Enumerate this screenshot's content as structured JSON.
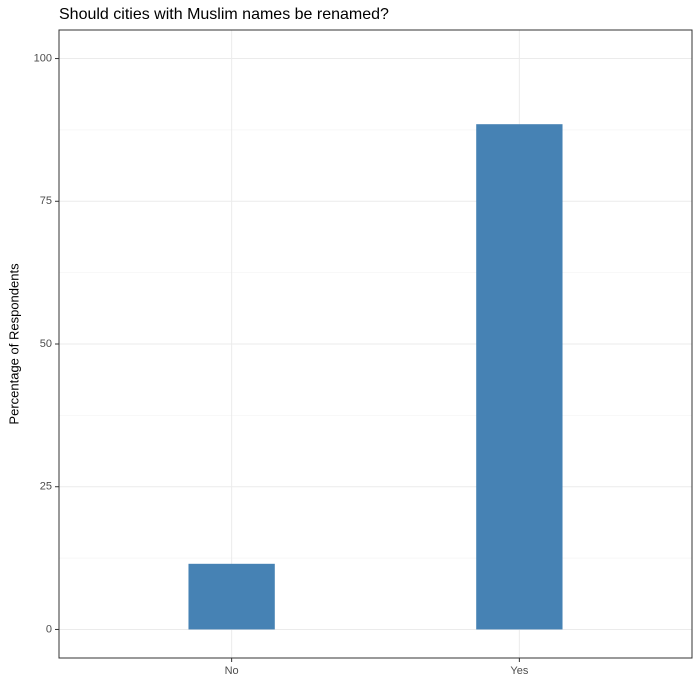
{
  "chart_data": {
    "type": "bar",
    "title": "Should cities with Muslim names be renamed?",
    "y_label": "Percentage of Respondents",
    "categories": [
      "No",
      "Yes"
    ],
    "values": [
      11.5,
      88.5
    ],
    "color": "#4682b4",
    "ylim": [
      -5,
      105
    ],
    "yticks": [
      0,
      25,
      50,
      75,
      100
    ],
    "y_minor_ticks": [
      12.5,
      37.5,
      62.5,
      87.5
    ],
    "grid": true
  }
}
